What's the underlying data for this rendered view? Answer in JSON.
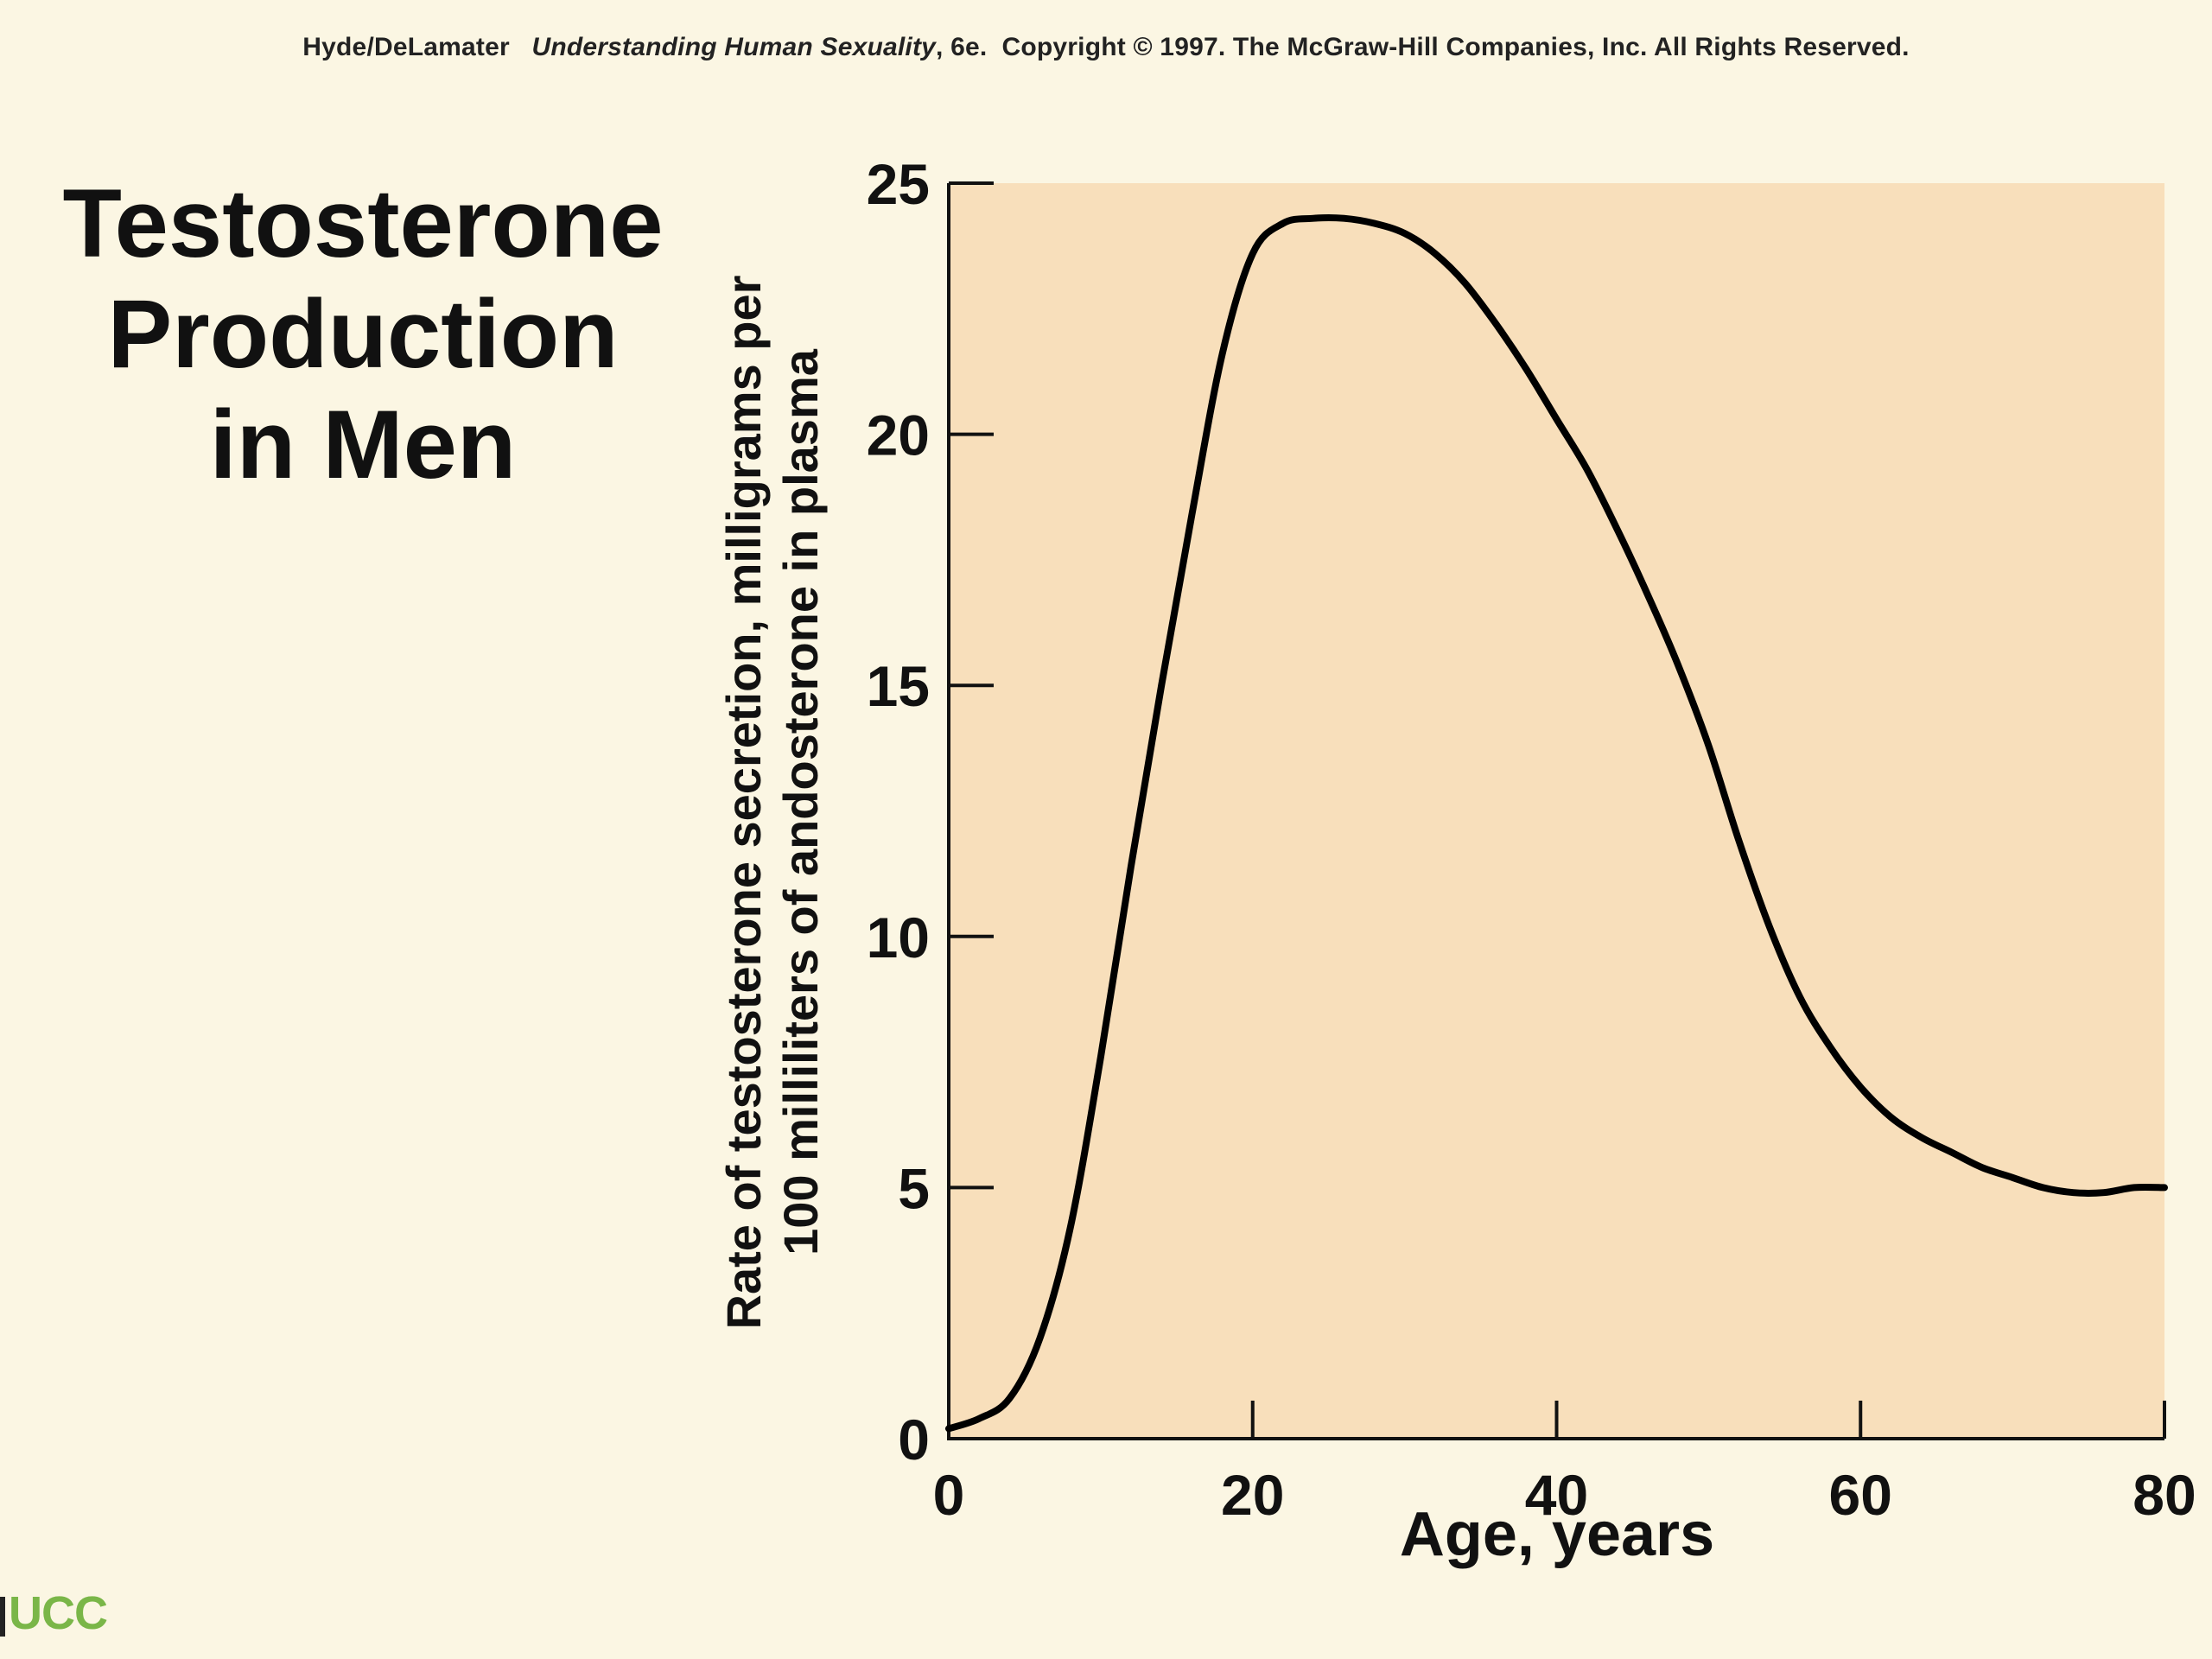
{
  "header": {
    "authors": "Hyde/DeLamater",
    "book": "Understanding Human Sexuality",
    "edition": ", 6e.",
    "copyright": "Copyright © 1997. The McGraw-Hill Companies, Inc. All Rights Reserved."
  },
  "title_lines": [
    "Testosterone",
    "Production",
    "in Men"
  ],
  "logo": "UCC",
  "colors": {
    "plot_background": "#f8dfbb",
    "page_background": "#fbf6e3",
    "curve": "#000000",
    "logo": "#7ab648"
  },
  "chart_data": {
    "type": "line",
    "title": "Testosterone Production in Men",
    "xlabel": "Age, years",
    "ylabel_lines": [
      "Rate of testosterone secretion, milligrams per",
      "100 milliliters of andosterone in plasma"
    ],
    "xlim": [
      0,
      80
    ],
    "ylim": [
      0,
      25
    ],
    "x_ticks": [
      0,
      20,
      40,
      60,
      80
    ],
    "y_ticks": [
      0,
      5,
      10,
      15,
      20,
      25
    ],
    "grid": false,
    "series": [
      {
        "x": [
          0,
          2,
          4,
          6,
          8,
          10,
          12,
          14,
          16,
          18,
          20,
          22,
          24,
          26,
          28,
          30,
          32,
          34,
          36,
          38,
          40,
          42,
          44,
          46,
          48,
          50,
          52,
          54,
          56,
          58,
          60,
          62,
          64,
          66,
          68,
          70,
          72,
          74,
          76,
          78,
          80
        ],
        "y": [
          0.2,
          0.4,
          0.8,
          2.0,
          4.2,
          7.6,
          11.4,
          15.0,
          18.4,
          21.6,
          23.6,
          24.2,
          24.3,
          24.3,
          24.2,
          24.0,
          23.6,
          23.0,
          22.2,
          21.3,
          20.3,
          19.3,
          18.1,
          16.8,
          15.4,
          13.8,
          11.9,
          10.2,
          8.8,
          7.8,
          7.0,
          6.4,
          6.0,
          5.7,
          5.4,
          5.2,
          5.0,
          4.9,
          4.9,
          5.0,
          5.0
        ]
      }
    ]
  }
}
